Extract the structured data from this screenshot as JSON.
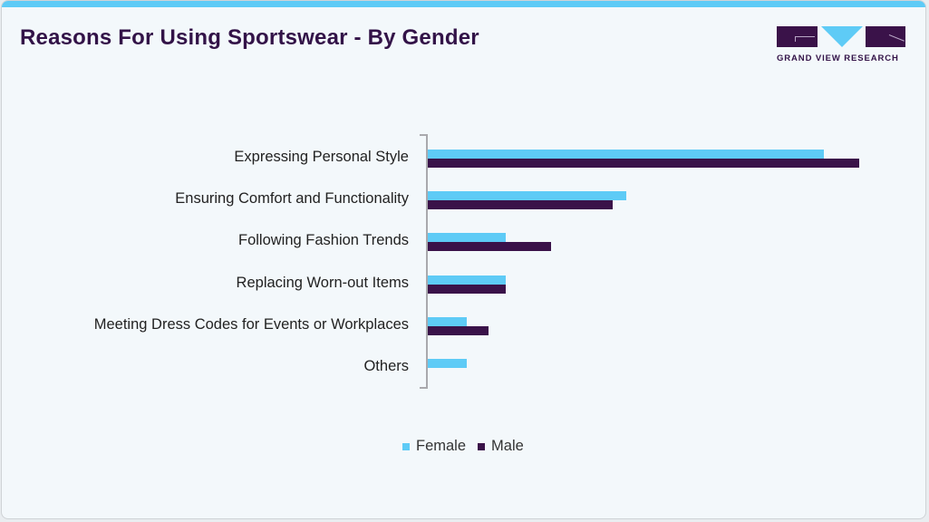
{
  "title": "Reasons For Using Sportswear - By Gender",
  "logo": {
    "text": "GRAND VIEW RESEARCH",
    "icon": "gvr-logo-icon"
  },
  "colors": {
    "female": "#5ecbf6",
    "male": "#3a1249",
    "title": "#331348",
    "accent_bar": "#5ecbf6"
  },
  "legend": [
    {
      "label": "Female",
      "color": "#5ecbf6"
    },
    {
      "label": "Male",
      "color": "#3a1249"
    }
  ],
  "chart_data": {
    "type": "bar",
    "orientation": "horizontal",
    "title": "Reasons For Using Sportswear - By Gender",
    "xlabel": "",
    "ylabel": "",
    "categories": [
      "Expressing Personal Style",
      "Ensuring Comfort and Functionality",
      "Following Fashion Trends",
      "Replacing Worn-out Items",
      "Meeting Dress Codes for Events or Workplaces",
      "Others"
    ],
    "series": [
      {
        "name": "Female",
        "values": [
          30.5,
          15.3,
          6.0,
          6.0,
          3.0,
          3.0
        ]
      },
      {
        "name": "Male",
        "values": [
          33.2,
          14.2,
          9.5,
          6.0,
          4.7,
          0.0
        ]
      }
    ],
    "grid": false,
    "xaxis_visible": false,
    "legend_position": "bottom",
    "note": "values estimated from bar lengths; no value axis shown"
  }
}
